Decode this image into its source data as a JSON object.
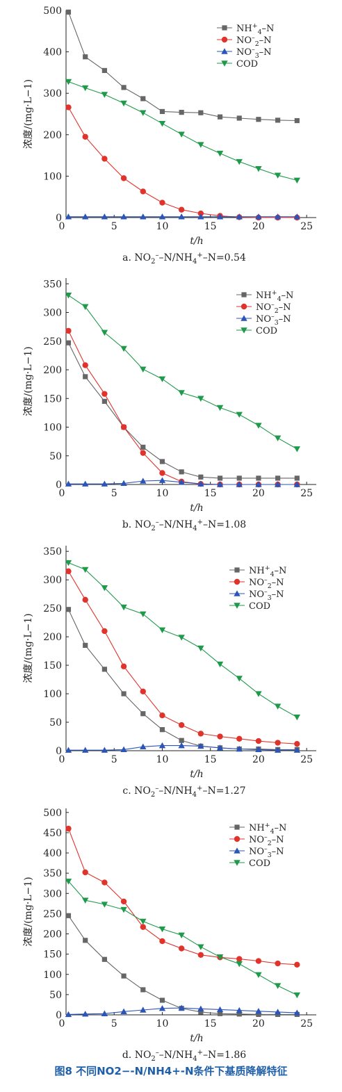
{
  "figure_caption": "图8 不同NO2−-N/NH4+-N条件下基质降解特征",
  "colors": {
    "NH4": "#666666",
    "NO2": "#e0332b",
    "NO3": "#2b55b8",
    "COD": "#1f9a4b"
  },
  "chart_data": [
    {
      "type": "line",
      "caption": "a. NO2−-N/NH4+-N=0.54",
      "xlabel": "t/h",
      "ylabel": "浓度/(mg·L−1)",
      "xlim": [
        0,
        26
      ],
      "ylim": [
        0,
        500
      ],
      "xticks": [
        0,
        5,
        10,
        15,
        20,
        25
      ],
      "yticks": [
        0,
        100,
        200,
        300,
        400,
        500
      ],
      "x": [
        0.25,
        2,
        4,
        6,
        8,
        10,
        12,
        14,
        16,
        18,
        20,
        22,
        24
      ],
      "series": [
        {
          "name": "NH4+-N",
          "marker": "square",
          "values": [
            496,
            388,
            355,
            314,
            287,
            256,
            254,
            253,
            243,
            240,
            237,
            235,
            234
          ]
        },
        {
          "name": "NO2−-N",
          "marker": "circle",
          "values": [
            266,
            195,
            142,
            95,
            63,
            36,
            19,
            10,
            4,
            1,
            0,
            0,
            0
          ]
        },
        {
          "name": "NO3−-N",
          "marker": "triangle-up",
          "values": [
            2,
            2,
            2,
            2,
            2,
            2,
            2,
            2,
            2,
            2,
            2,
            2,
            2
          ]
        },
        {
          "name": "COD",
          "marker": "triangle-down",
          "values": [
            328,
            313,
            297,
            276,
            253,
            227,
            201,
            176,
            155,
            135,
            118,
            102,
            90
          ]
        }
      ],
      "legend_position": "top-right"
    },
    {
      "type": "line",
      "caption": "b. NO2−-N/NH4+-N=1.08",
      "xlabel": "t/h",
      "ylabel": "浓度/(mg·L−1)",
      "xlim": [
        0,
        26
      ],
      "ylim": [
        0,
        360
      ],
      "xticks": [
        0,
        5,
        10,
        15,
        20,
        25
      ],
      "yticks": [
        0,
        50,
        100,
        150,
        200,
        250,
        300,
        350
      ],
      "x": [
        0.25,
        2,
        4,
        6,
        8,
        10,
        12,
        14,
        16,
        18,
        20,
        22,
        24
      ],
      "series": [
        {
          "name": "NH4+-N",
          "marker": "square",
          "values": [
            247,
            188,
            145,
            100,
            65,
            40,
            22,
            13,
            11,
            11,
            11,
            11,
            11
          ]
        },
        {
          "name": "NO2−-N",
          "marker": "circle",
          "values": [
            268,
            208,
            158,
            100,
            55,
            20,
            5,
            1,
            0,
            0,
            0,
            0,
            0
          ]
        },
        {
          "name": "NO3−-N",
          "marker": "triangle-up",
          "values": [
            1,
            1,
            1,
            2,
            6,
            7,
            4,
            1,
            0,
            0,
            0,
            0,
            0
          ]
        },
        {
          "name": "COD",
          "marker": "triangle-down",
          "values": [
            330,
            310,
            265,
            237,
            201,
            184,
            160,
            150,
            134,
            122,
            103,
            81,
            62
          ]
        }
      ],
      "legend_position": "top-right"
    },
    {
      "type": "line",
      "caption": "c. NO2−-N/NH4+-N=1.27",
      "xlabel": "t/h",
      "ylabel": "浓度/(mg·L−1)",
      "xlim": [
        0,
        26
      ],
      "ylim": [
        0,
        360
      ],
      "xticks": [
        0,
        5,
        10,
        15,
        20,
        25
      ],
      "yticks": [
        0,
        50,
        100,
        150,
        200,
        250,
        300,
        350
      ],
      "x": [
        0.25,
        2,
        4,
        6,
        8,
        10,
        12,
        14,
        16,
        18,
        20,
        22,
        24
      ],
      "series": [
        {
          "name": "NH4+-N",
          "marker": "square",
          "values": [
            248,
            185,
            143,
            100,
            65,
            37,
            18,
            8,
            5,
            3,
            3,
            2,
            2
          ]
        },
        {
          "name": "NO2−-N",
          "marker": "circle",
          "values": [
            315,
            265,
            210,
            148,
            104,
            62,
            45,
            30,
            25,
            21,
            17,
            14,
            12
          ]
        },
        {
          "name": "NO3−-N",
          "marker": "triangle-up",
          "values": [
            1,
            1,
            1,
            2,
            7,
            9,
            9,
            8,
            5,
            3,
            2,
            1,
            1
          ]
        },
        {
          "name": "COD",
          "marker": "triangle-down",
          "values": [
            330,
            318,
            286,
            252,
            240,
            212,
            199,
            180,
            152,
            127,
            100,
            78,
            59
          ]
        }
      ],
      "legend_position": "top-right"
    },
    {
      "type": "line",
      "caption": "d. NO2−-N/NH4+-N=1.86",
      "xlabel": "t/h",
      "ylabel": "浓度/(mg·L−1)",
      "xlim": [
        0,
        26
      ],
      "ylim": [
        0,
        510
      ],
      "xticks": [
        0,
        5,
        10,
        15,
        20,
        25
      ],
      "yticks": [
        0,
        50,
        100,
        150,
        200,
        250,
        300,
        350,
        400,
        450,
        500
      ],
      "x": [
        0.25,
        2,
        4,
        6,
        8,
        10,
        12,
        14,
        16,
        18,
        20,
        22,
        24
      ],
      "series": [
        {
          "name": "NH4+-N",
          "marker": "square",
          "values": [
            245,
            184,
            137,
            96,
            62,
            36,
            16,
            7,
            3,
            2,
            1,
            1,
            1
          ]
        },
        {
          "name": "NO2−-N",
          "marker": "circle",
          "values": [
            460,
            352,
            327,
            280,
            217,
            182,
            164,
            148,
            142,
            138,
            133,
            127,
            124
          ]
        },
        {
          "name": "NO3−-N",
          "marker": "triangle-up",
          "values": [
            1,
            2,
            3,
            8,
            12,
            16,
            17,
            15,
            13,
            11,
            9,
            7,
            5
          ]
        },
        {
          "name": "COD",
          "marker": "triangle-down",
          "values": [
            330,
            283,
            273,
            260,
            231,
            212,
            197,
            168,
            143,
            126,
            99,
            72,
            49
          ]
        }
      ],
      "legend_position": "top-right"
    }
  ]
}
